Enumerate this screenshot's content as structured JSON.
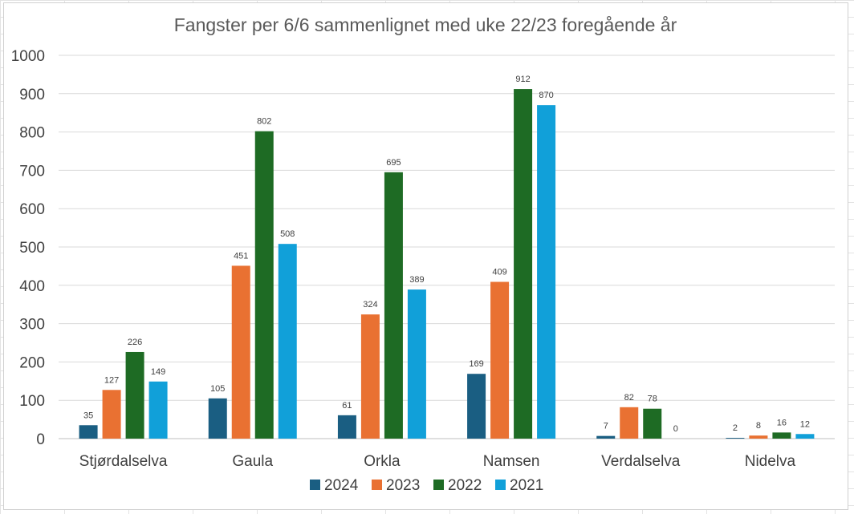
{
  "chart_data": {
    "type": "bar",
    "title": "Fangster per 6/6 sammenlignet med uke 22/23 foregående år",
    "categories": [
      "Stjørdalselva",
      "Gaula",
      "Orkla",
      "Namsen",
      "Verdalselva",
      "Nidelva"
    ],
    "series": [
      {
        "name": "2024",
        "color": "#1a5e82",
        "values": [
          35,
          105,
          61,
          169,
          7,
          2
        ]
      },
      {
        "name": "2023",
        "color": "#e97132",
        "values": [
          127,
          451,
          324,
          409,
          82,
          8
        ]
      },
      {
        "name": "2022",
        "color": "#1e6b24",
        "values": [
          226,
          802,
          695,
          912,
          78,
          16
        ]
      },
      {
        "name": "2021",
        "color": "#11a0d9",
        "values": [
          149,
          508,
          389,
          870,
          0,
          12
        ]
      }
    ],
    "ylim": [
      0,
      1000
    ],
    "yticks": [
      "0",
      "100",
      "200",
      "300",
      "400",
      "500",
      "600",
      "700",
      "800",
      "900",
      "1000"
    ],
    "grid": true,
    "legend_position": "bottom",
    "data_labels": true
  }
}
